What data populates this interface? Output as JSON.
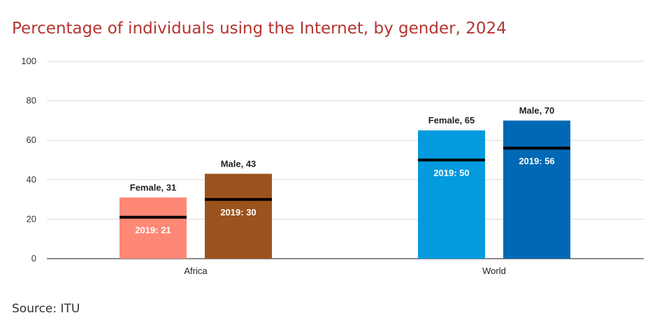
{
  "chart_data": {
    "type": "bar",
    "title": "Percentage of individuals using the Internet, by gender, 2024",
    "categories": [
      "Africa",
      "World"
    ],
    "ylim": [
      0,
      100
    ],
    "yticks": [
      0,
      20,
      40,
      60,
      80,
      100
    ],
    "grid": true,
    "bars": [
      {
        "category": "Africa",
        "label": "Female, 31",
        "value": 31,
        "baseline": 21,
        "baseline_label": "2019: 21",
        "color": "#fe8876"
      },
      {
        "category": "Africa",
        "label": "Male, 43",
        "value": 43,
        "baseline": 30,
        "baseline_label": "2019: 30",
        "color": "#9b531d"
      },
      {
        "category": "World",
        "label": "Female, 65",
        "value": 65,
        "baseline": 50,
        "baseline_label": "2019: 50",
        "color": "#049ade"
      },
      {
        "category": "World",
        "label": "Male, 70",
        "value": 70,
        "baseline": 56,
        "baseline_label": "2019: 56",
        "color": "#0068b4"
      }
    ]
  },
  "source": "Source: ITU"
}
